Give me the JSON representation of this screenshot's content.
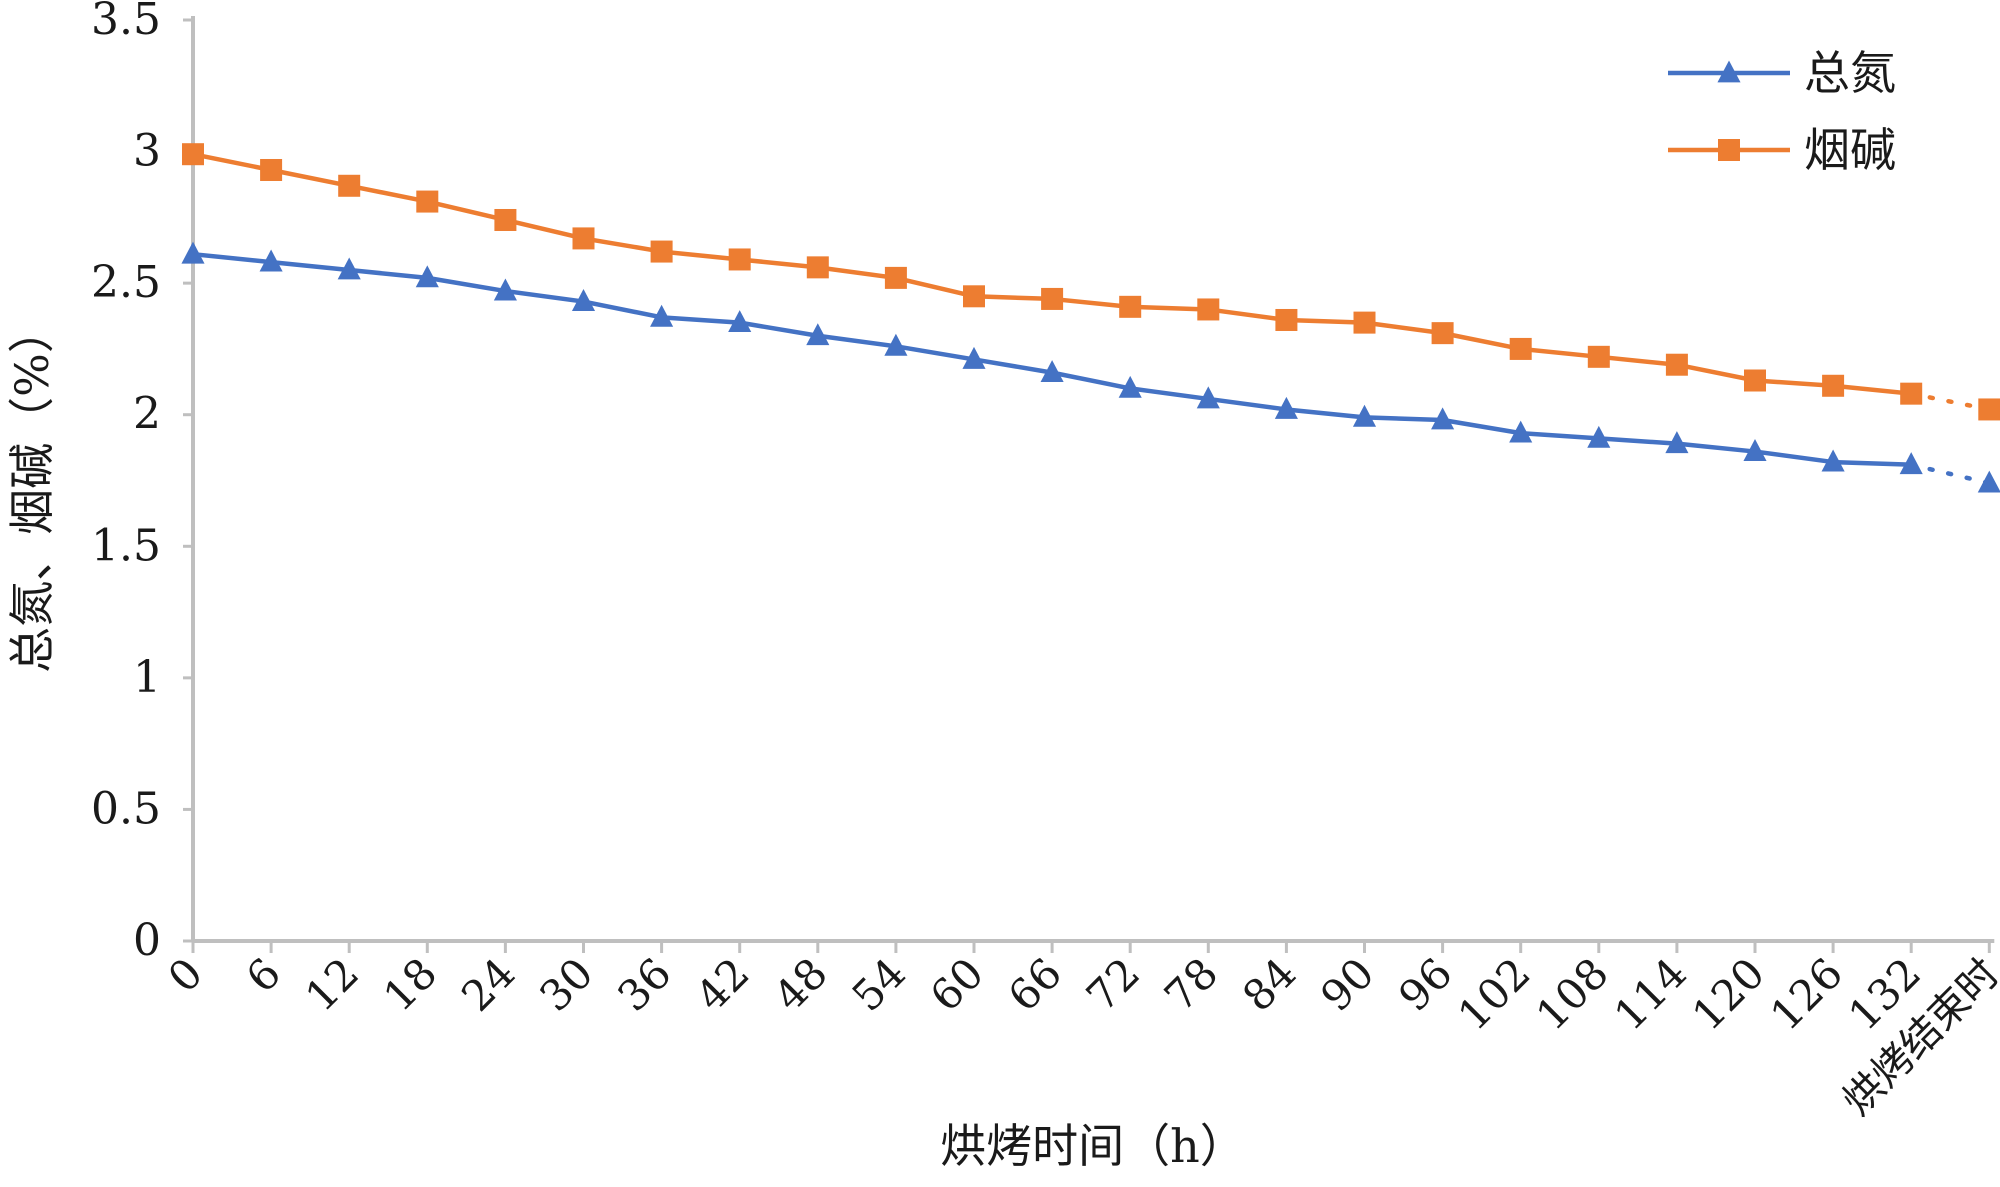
{
  "chart_data": {
    "type": "line",
    "xlabel": "烘烤时间（h）",
    "ylabel": "总氮、烟碱（%）",
    "categories": [
      "0",
      "6",
      "12",
      "18",
      "24",
      "30",
      "36",
      "42",
      "48",
      "54",
      "60",
      "66",
      "72",
      "78",
      "84",
      "90",
      "96",
      "102",
      "108",
      "114",
      "120",
      "126",
      "132",
      "烘烤结束时"
    ],
    "ylim": [
      0,
      3.5
    ],
    "yticks": [
      "0",
      "0.5",
      "1",
      "1.5",
      "2",
      "2.5",
      "3",
      "3.5"
    ],
    "grid": false,
    "legend_position": "top-right",
    "last_segment_style": "dotted",
    "series": [
      {
        "name": "总氮",
        "marker": "triangle",
        "color": "#4472C4",
        "values": [
          2.61,
          2.58,
          2.55,
          2.52,
          2.47,
          2.43,
          2.37,
          2.35,
          2.3,
          2.26,
          2.21,
          2.16,
          2.1,
          2.06,
          2.02,
          1.99,
          1.98,
          1.93,
          1.91,
          1.89,
          1.86,
          1.82,
          1.81,
          1.74
        ]
      },
      {
        "name": "烟碱",
        "marker": "square",
        "color": "#ED7D31",
        "values": [
          2.99,
          2.93,
          2.87,
          2.81,
          2.74,
          2.67,
          2.62,
          2.59,
          2.56,
          2.52,
          2.45,
          2.44,
          2.41,
          2.4,
          2.36,
          2.35,
          2.31,
          2.25,
          2.22,
          2.19,
          2.13,
          2.11,
          2.08,
          2.02
        ]
      }
    ]
  }
}
